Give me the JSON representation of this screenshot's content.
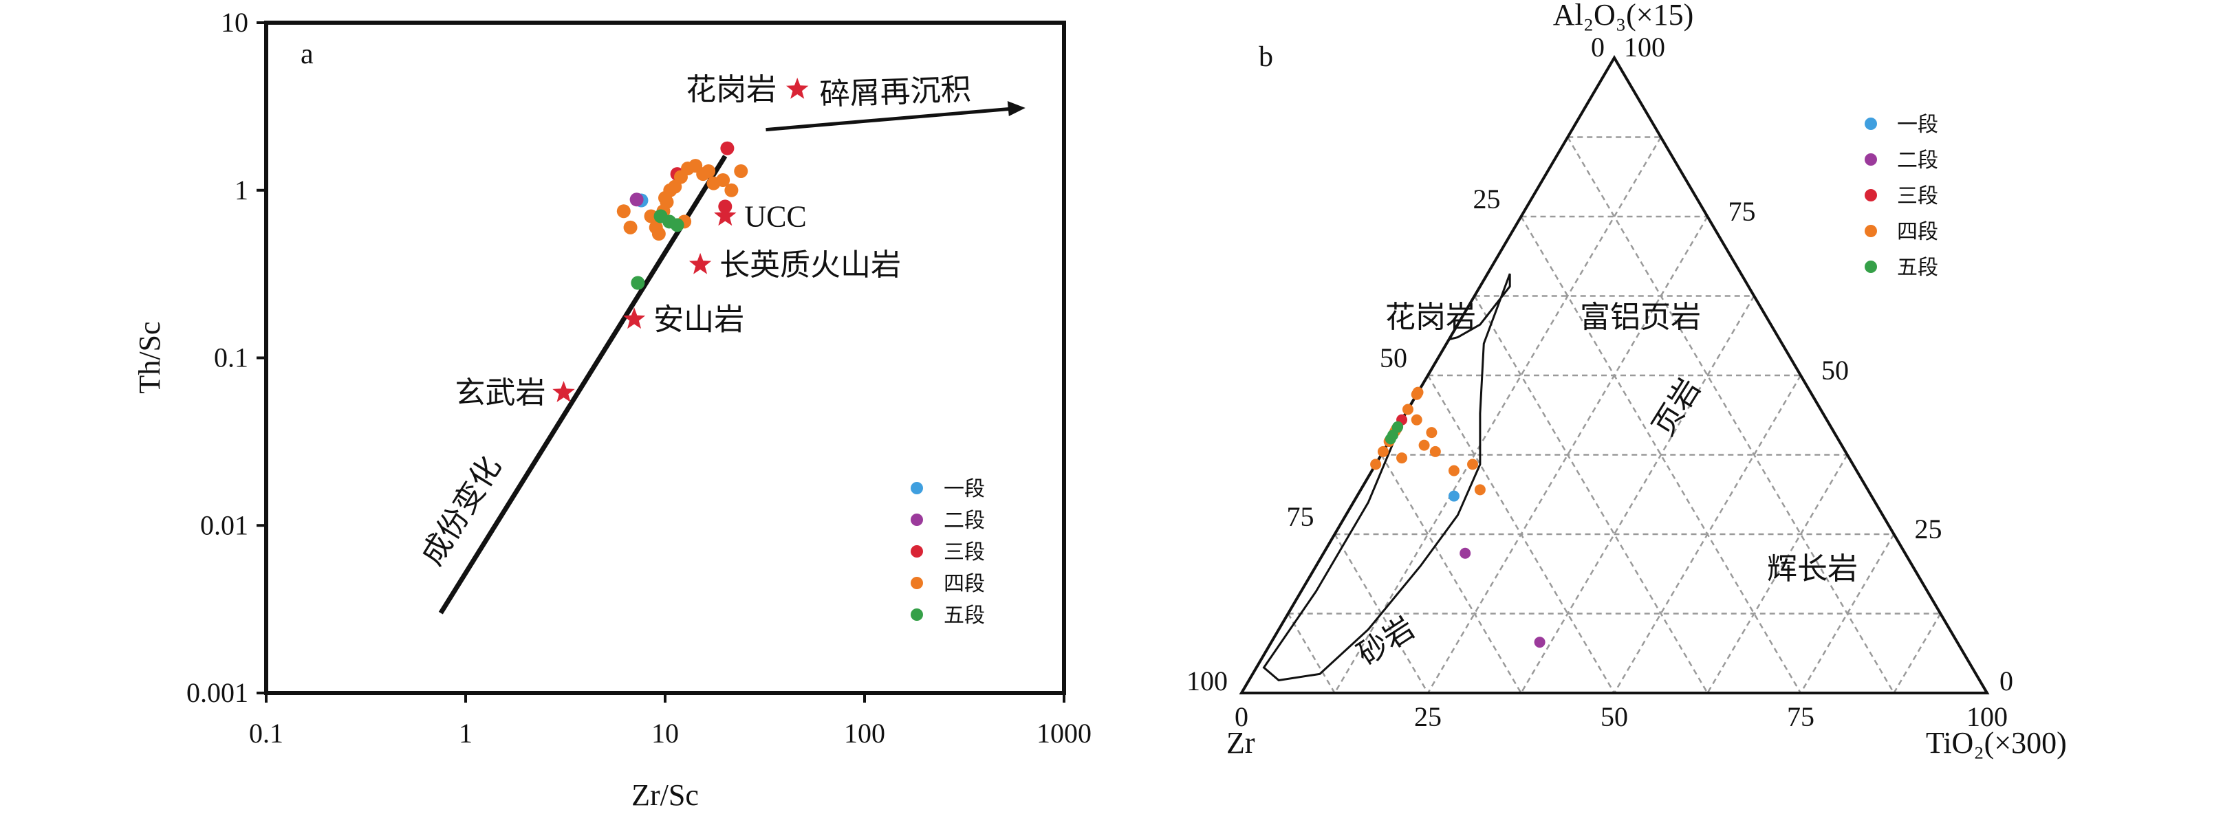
{
  "chart_data": [
    {
      "panel": "a",
      "type": "scatter",
      "x_scale": "log",
      "y_scale": "log",
      "xlabel": "Zr/Sc",
      "ylabel": "Th/Sc",
      "xlim": [
        0.1,
        1000
      ],
      "ylim": [
        0.001,
        10
      ],
      "x_ticks": [
        "0.1",
        "1",
        "10",
        "100",
        "1000"
      ],
      "y_ticks": [
        "0.001",
        "0.01",
        "0.1",
        "1",
        "10"
      ],
      "references": [
        {
          "label": "花岗岩",
          "x": 46,
          "y": 4.0
        },
        {
          "label": "UCC",
          "x": 20,
          "y": 0.7
        },
        {
          "label": "长英质火山岩",
          "x": 15,
          "y": 0.36
        },
        {
          "label": "安山岩",
          "x": 7,
          "y": 0.17
        },
        {
          "label": "玄武岩",
          "x": 3.1,
          "y": 0.062
        }
      ],
      "trend_line": {
        "label": "成份变化",
        "from": [
          0.75,
          0.003
        ],
        "to": [
          20,
          1.6
        ]
      },
      "arrow": {
        "label": "碎屑再沉积",
        "from": [
          32,
          2.3
        ],
        "to": [
          640,
          3.1
        ]
      },
      "series": [
        {
          "name": "一段",
          "points": [
            [
              7.6,
              0.87
            ]
          ]
        },
        {
          "name": "二段",
          "points": [
            [
              7.2,
              0.88
            ]
          ]
        },
        {
          "name": "三段",
          "points": [
            [
              20.5,
              1.78
            ],
            [
              11.5,
              1.25
            ],
            [
              20,
              0.8
            ]
          ]
        },
        {
          "name": "四段",
          "points": [
            [
              6.2,
              0.75
            ],
            [
              6.7,
              0.6
            ],
            [
              8.5,
              0.7
            ],
            [
              9.0,
              0.6
            ],
            [
              9.8,
              0.75
            ],
            [
              10.2,
              0.85
            ],
            [
              10.6,
              1.0
            ],
            [
              11.2,
              1.05
            ],
            [
              12.0,
              1.2
            ],
            [
              13.0,
              1.35
            ],
            [
              14.2,
              1.4
            ],
            [
              15.5,
              1.25
            ],
            [
              16.5,
              1.3
            ],
            [
              17.5,
              1.1
            ],
            [
              19.5,
              1.15
            ],
            [
              21.5,
              1.0
            ],
            [
              24.0,
              1.3
            ],
            [
              10.0,
              0.9
            ],
            [
              12.5,
              0.65
            ],
            [
              9.3,
              0.55
            ]
          ]
        },
        {
          "name": "五段",
          "points": [
            [
              7.3,
              0.28
            ],
            [
              10.5,
              0.65
            ],
            [
              11.5,
              0.62
            ],
            [
              9.5,
              0.7
            ]
          ]
        }
      ]
    },
    {
      "panel": "b",
      "type": "ternary",
      "apex_label_top": "Al₂O₃(×15)",
      "apex_label_left": "Zr",
      "apex_label_right": "TiO₂(×300)",
      "axis_ticks": [
        "0",
        "25",
        "50",
        "75",
        "100"
      ],
      "fields": [
        "花岗岩",
        "富铝页岩",
        "页岩",
        "砂岩",
        "辉长岩"
      ],
      "series": [
        {
          "name": "一段",
          "points": [
            [
              0.31,
              0.56,
              0.13
            ]
          ]
        },
        {
          "name": "二段",
          "points": [
            [
              0.22,
              0.59,
              0.19
            ],
            [
              0.08,
              0.56,
              0.36
            ]
          ]
        },
        {
          "name": "三段",
          "points": [
            [
              0.43,
              0.57,
              0.0
            ],
            [
              0.42,
              0.59,
              0.0
            ]
          ]
        },
        {
          "name": "四段",
          "points": [
            [
              0.47,
              0.53,
              0.0
            ],
            [
              0.41,
              0.54,
              0.05
            ],
            [
              0.43,
              0.55,
              0.02
            ],
            [
              0.38,
              0.55,
              0.07
            ],
            [
              0.36,
              0.51,
              0.13
            ],
            [
              0.32,
              0.52,
              0.16
            ],
            [
              0.35,
              0.54,
              0.11
            ],
            [
              0.39,
              0.56,
              0.05
            ],
            [
              0.42,
              0.6,
              0.0
            ],
            [
              0.4,
              0.61,
              0.0
            ],
            [
              0.44,
              0.62,
              0.0
            ],
            [
              0.38,
              0.62,
              0.0
            ],
            [
              0.37,
              0.6,
              0.03
            ],
            [
              0.36,
              0.64,
              0.0
            ],
            [
              0.5,
              0.62,
              0.0
            ],
            [
              0.62,
              0.69,
              0.0
            ]
          ]
        },
        {
          "name": "五段",
          "points": [
            [
              0.44,
              0.61,
              0.0
            ],
            [
              0.42,
              0.63,
              0.0
            ],
            [
              0.46,
              0.64,
              0.0
            ],
            [
              0.41,
              0.6,
              0.0
            ]
          ]
        }
      ]
    }
  ],
  "legend": [
    {
      "name": "一段",
      "color": "#3f9fdf"
    },
    {
      "name": "二段",
      "color": "#9b3a9b"
    },
    {
      "name": "三段",
      "color": "#d92435"
    },
    {
      "name": "四段",
      "color": "#ee7a22"
    },
    {
      "name": "五段",
      "color": "#35a048"
    }
  ],
  "reference_color": "#d92435",
  "line_color": "#111111"
}
